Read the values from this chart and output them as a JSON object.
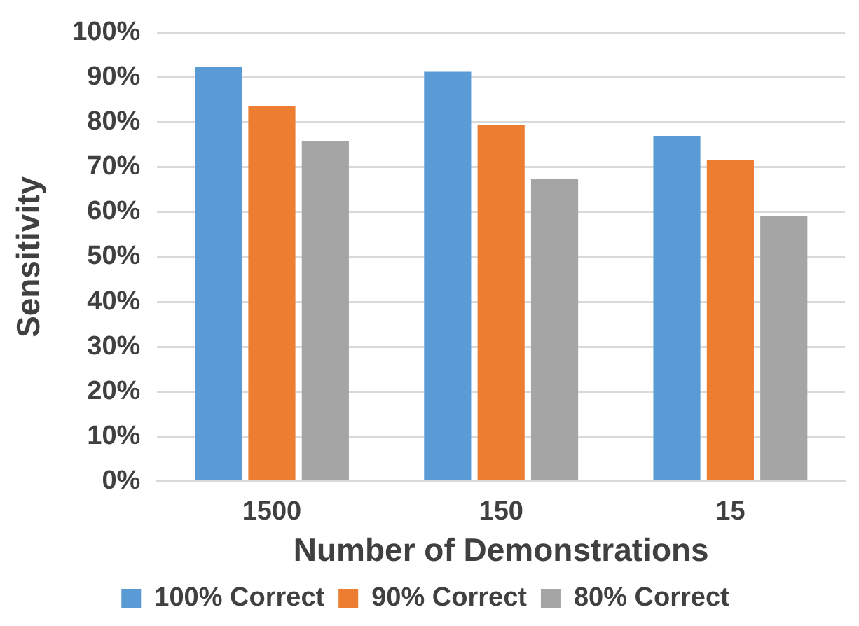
{
  "chart_data": {
    "type": "bar",
    "xlabel": "Number of Demonstrations",
    "ylabel": "Sensitivity",
    "categories": [
      "1500",
      "150",
      "15"
    ],
    "series": [
      {
        "name": "100% Correct",
        "color": "#5b9bd5",
        "values": [
          92.4,
          91.3,
          77.0
        ]
      },
      {
        "name": "90% Correct",
        "color": "#ed7d31",
        "values": [
          83.6,
          79.5,
          71.7
        ]
      },
      {
        "name": "80% Correct",
        "color": "#a5a5a5",
        "values": [
          75.8,
          67.5,
          59.2
        ]
      }
    ],
    "ylim": [
      0,
      100
    ],
    "yticks": [
      {
        "value": 0,
        "label": "0%"
      },
      {
        "value": 10,
        "label": "10%"
      },
      {
        "value": 20,
        "label": "20%"
      },
      {
        "value": 30,
        "label": "30%"
      },
      {
        "value": 40,
        "label": "40%"
      },
      {
        "value": 50,
        "label": "50%"
      },
      {
        "value": 60,
        "label": "60%"
      },
      {
        "value": 70,
        "label": "70%"
      },
      {
        "value": 80,
        "label": "80%"
      },
      {
        "value": 90,
        "label": "90%"
      },
      {
        "value": 100,
        "label": "100%"
      }
    ],
    "grid": "y",
    "legend": "bottom"
  }
}
